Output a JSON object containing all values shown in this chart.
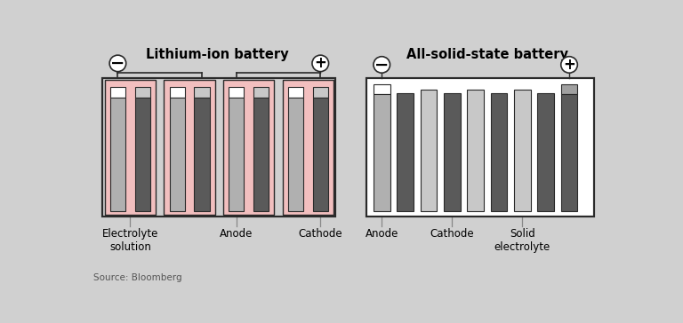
{
  "bg_color": "#d0d0d0",
  "title_li": "Lithium-ion battery",
  "title_ss": "All-solid-state battery",
  "source_text": "Source: Bloomberg",
  "colors": {
    "pink": "#f2bfbf",
    "light_gray": "#b0b0b0",
    "dark_gray": "#5a5a5a",
    "mid_gray": "#8a8a8a",
    "white": "#ffffff",
    "border": "#2a2a2a",
    "pale_gray": "#c8c8c8",
    "cap_gray": "#a0a0a0"
  },
  "font_size_title": 10.5,
  "font_size_label": 8.5,
  "font_size_source": 7.5
}
